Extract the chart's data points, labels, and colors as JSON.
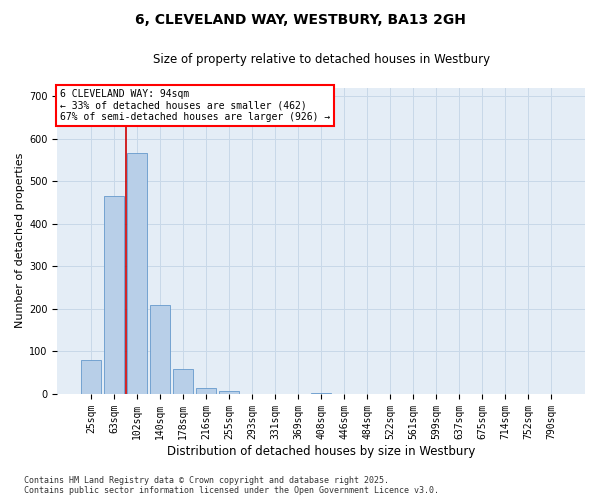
{
  "title": "6, CLEVELAND WAY, WESTBURY, BA13 2GH",
  "subtitle": "Size of property relative to detached houses in Westbury",
  "xlabel": "Distribution of detached houses by size in Westbury",
  "ylabel": "Number of detached properties",
  "footer_line1": "Contains HM Land Registry data © Crown copyright and database right 2025.",
  "footer_line2": "Contains public sector information licensed under the Open Government Licence v3.0.",
  "categories": [
    "25sqm",
    "63sqm",
    "102sqm",
    "140sqm",
    "178sqm",
    "216sqm",
    "255sqm",
    "293sqm",
    "331sqm",
    "369sqm",
    "408sqm",
    "446sqm",
    "484sqm",
    "522sqm",
    "561sqm",
    "599sqm",
    "637sqm",
    "675sqm",
    "714sqm",
    "752sqm",
    "790sqm"
  ],
  "values": [
    80,
    465,
    565,
    208,
    58,
    15,
    6,
    0,
    0,
    0,
    3,
    0,
    0,
    0,
    0,
    0,
    0,
    0,
    0,
    0,
    0
  ],
  "bar_color": "#b8cfe8",
  "bar_edge_color": "#6699cc",
  "grid_color": "#c8d8e8",
  "background_color": "#e4edf6",
  "vline_color": "#cc0000",
  "vline_x": 1.5,
  "annotation_line1": "6 CLEVELAND WAY: 94sqm",
  "annotation_line2": "← 33% of detached houses are smaller (462)",
  "annotation_line3": "67% of semi-detached houses are larger (926) →",
  "ylim_max": 720,
  "yticks": [
    0,
    100,
    200,
    300,
    400,
    500,
    600,
    700
  ],
  "title_fontsize": 10,
  "subtitle_fontsize": 8.5,
  "ylabel_fontsize": 8,
  "xlabel_fontsize": 8.5,
  "tick_fontsize": 7,
  "annot_fontsize": 7,
  "footer_fontsize": 6
}
